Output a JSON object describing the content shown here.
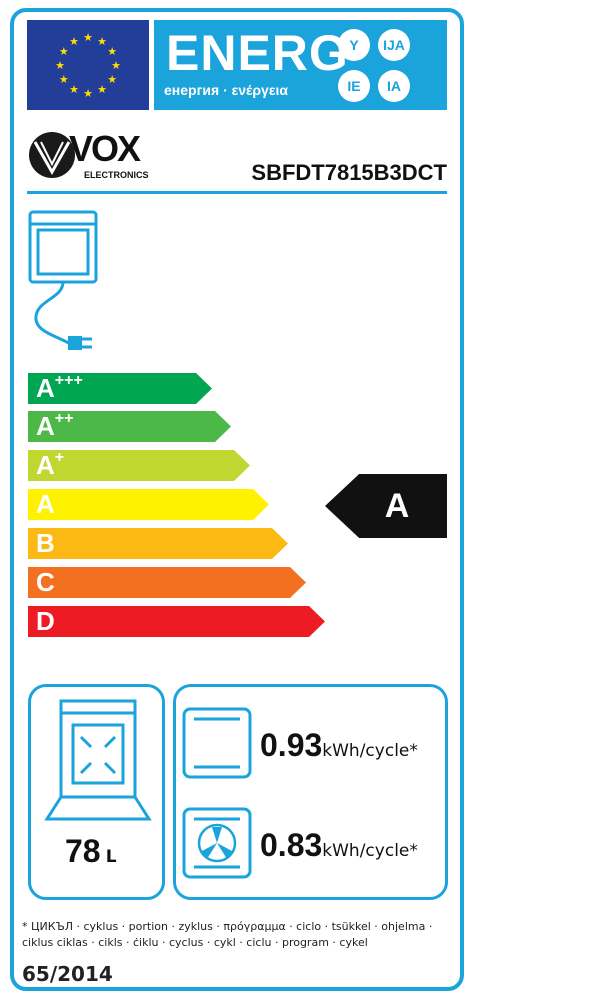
{
  "header": {
    "energy_title": "ENERG",
    "energy_subtitle": "енергия · ενέργεια",
    "suffixes": [
      "Y",
      "IJA",
      "IE",
      "IA"
    ]
  },
  "brand": {
    "name": "VOX",
    "tagline": "ELECTRONICS"
  },
  "model": "SBFDT7815B3DCT",
  "scale": [
    {
      "letter": "A",
      "plus": "+++",
      "color": "#00a651"
    },
    {
      "letter": "A",
      "plus": "++",
      "color": "#4cb848"
    },
    {
      "letter": "A",
      "plus": "+",
      "color": "#bfd730"
    },
    {
      "letter": "A",
      "plus": "",
      "color": "#fff200"
    },
    {
      "letter": "B",
      "plus": "",
      "color": "#fdb913"
    },
    {
      "letter": "C",
      "plus": "",
      "color": "#f37021"
    },
    {
      "letter": "D",
      "plus": "",
      "color": "#ed1c24"
    }
  ],
  "rating": "A",
  "volume": {
    "value": "78",
    "unit": "L"
  },
  "consumption": [
    {
      "mode": "conventional",
      "value": "0.93",
      "unit": "kWh/cycle*"
    },
    {
      "mode": "fan-forced",
      "value": "0.83",
      "unit": "kWh/cycle*"
    }
  ],
  "footnote": "* ЦИКЪЛ · cyklus · portion · zyklus · πρόγραμμα · ciclo · tsükkel · ohjelma · ciklus ciklas · cikls · ċiklu · cyclus · cykl · ciclu · program · cykel",
  "regulation": "65/2014",
  "colors": {
    "accent": "#1ba3dc",
    "eu_blue": "#233e99",
    "eu_star": "#ffdd00"
  }
}
